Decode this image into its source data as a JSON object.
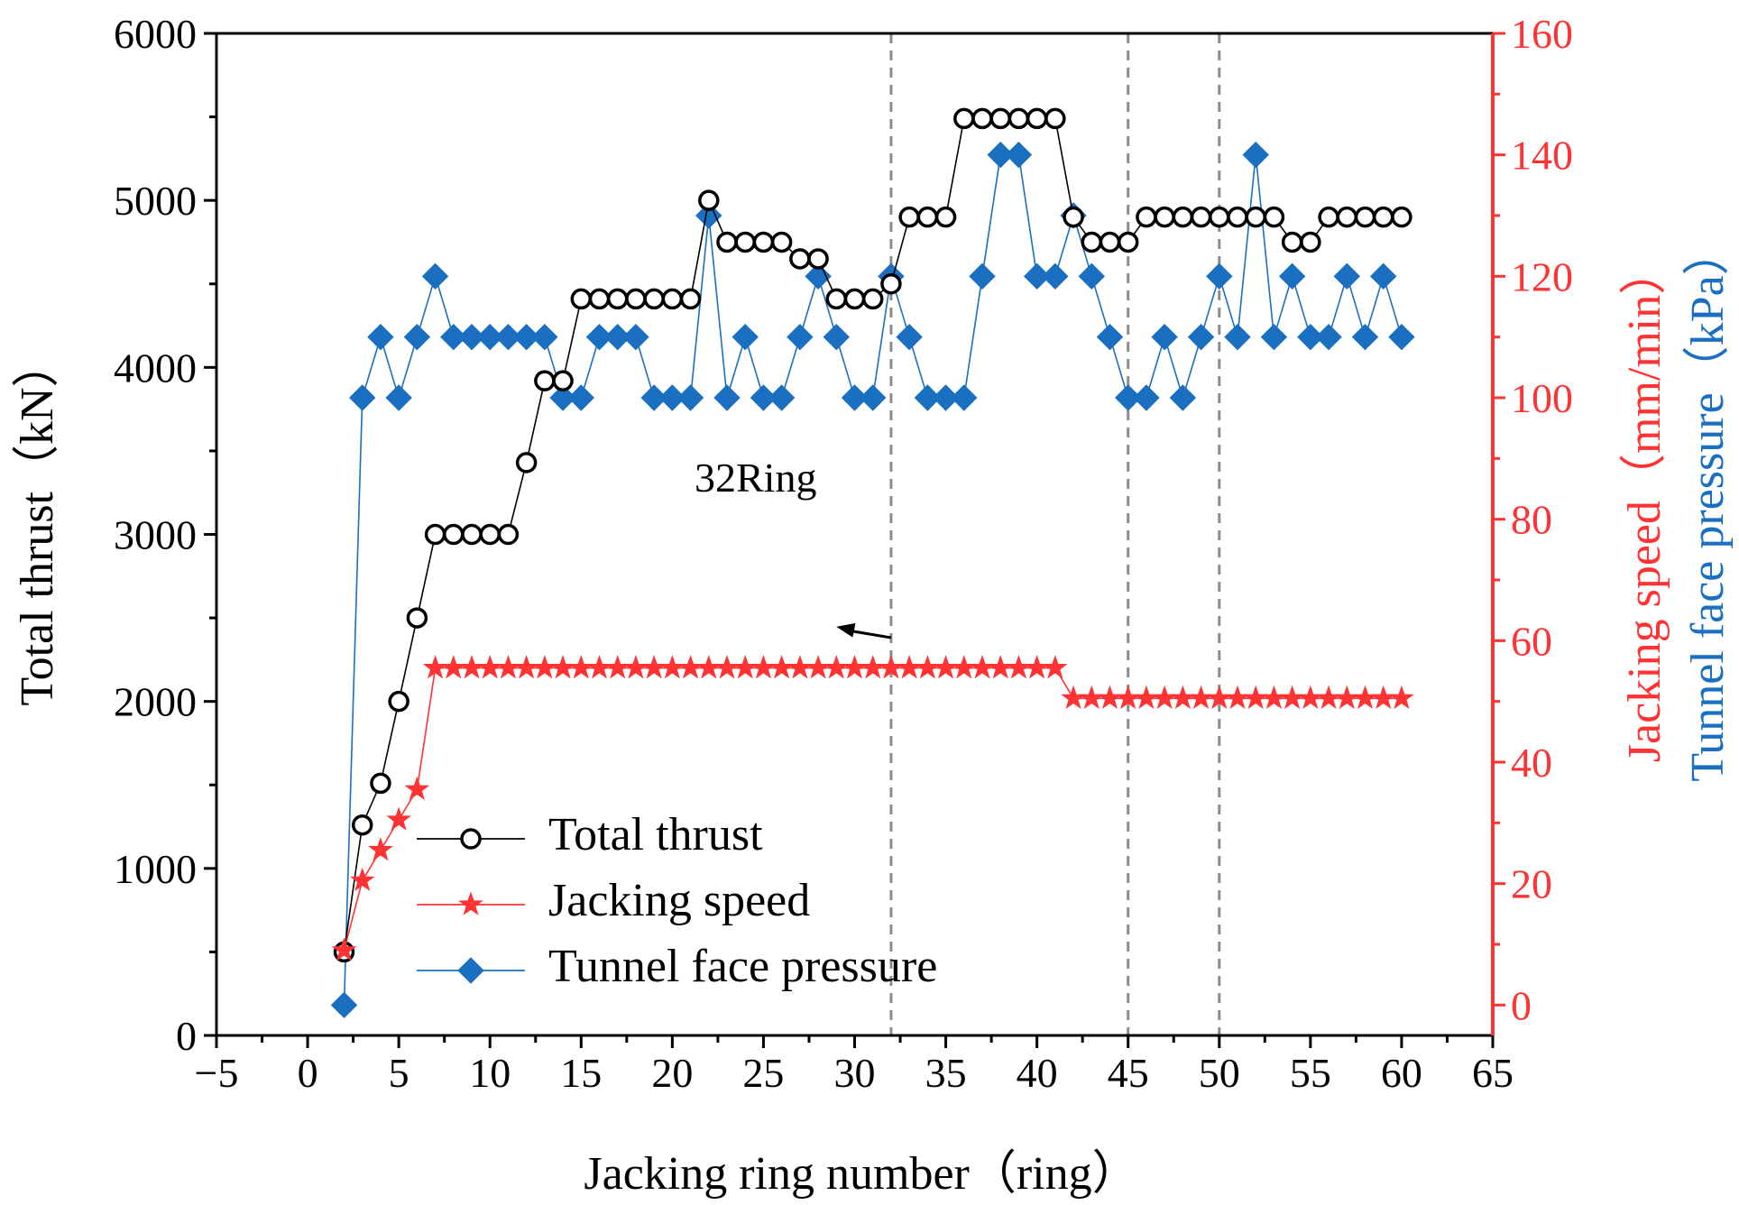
{
  "chart_data": {
    "type": "line",
    "title": "",
    "xlabel": "Jacking ring number（ring）",
    "ylabel_left": "Total thrust（kN）",
    "ylabel_right_1": "Jacking speed（mm/min）",
    "ylabel_right_2": "Tunnel face pressure（kPa）",
    "xlim": [
      -5,
      65
    ],
    "xticks": [
      "−5",
      "0",
      "5",
      "10",
      "15",
      "20",
      "25",
      "30",
      "35",
      "40",
      "45",
      "50",
      "55",
      "60",
      "65"
    ],
    "ylim_left": [
      0,
      6000
    ],
    "yticks_left": [
      "0",
      "1000",
      "2000",
      "3000",
      "4000",
      "5000",
      "6000"
    ],
    "ylim_right": [
      -5,
      160
    ],
    "yticks_right": [
      "0",
      "20",
      "40",
      "60",
      "80",
      "100",
      "120",
      "140",
      "160"
    ],
    "vlines": [
      32,
      45,
      50
    ],
    "annotation": {
      "text": "32Ring",
      "arrow_from": [
        32,
        60.5
      ],
      "arrow_to": [
        29,
        62.3
      ]
    },
    "legend_position": "bottom-left",
    "x": [
      2,
      3,
      4,
      5,
      6,
      7,
      8,
      9,
      10,
      11,
      12,
      13,
      14,
      15,
      16,
      17,
      18,
      19,
      20,
      21,
      22,
      23,
      24,
      25,
      26,
      27,
      28,
      29,
      30,
      31,
      32,
      33,
      34,
      35,
      36,
      37,
      38,
      39,
      40,
      41,
      42,
      43,
      44,
      45,
      46,
      47,
      48,
      49,
      50,
      51,
      52,
      53,
      54,
      55,
      56,
      57,
      58,
      59,
      60
    ],
    "series": [
      {
        "name": "Total thrust",
        "axis": "left",
        "marker": "circle",
        "color": "#000000",
        "values": [
          500,
          1260,
          1510,
          2000,
          2500,
          3000,
          3000,
          3000,
          3000,
          3000,
          3430,
          3920,
          3920,
          4410,
          4410,
          4410,
          4410,
          4410,
          4410,
          4410,
          5000,
          4750,
          4750,
          4750,
          4750,
          4650,
          4650,
          4410,
          4410,
          4410,
          4500,
          4900,
          4900,
          4900,
          5490,
          5490,
          5490,
          5490,
          5490,
          5490,
          4900,
          4750,
          4750,
          4750,
          4900,
          4900,
          4900,
          4900,
          4900,
          4900,
          4900,
          4900,
          4750,
          4750,
          4900,
          4900,
          4900,
          4900,
          4900
        ]
      },
      {
        "name": "Jacking speed",
        "axis": "right",
        "marker": "star",
        "color": "#ff3333",
        "values": [
          9,
          20.5,
          25.5,
          30.5,
          35.5,
          55.5,
          55.5,
          55.5,
          55.5,
          55.5,
          55.5,
          55.5,
          55.5,
          55.5,
          55.5,
          55.5,
          55.5,
          55.5,
          55.5,
          55.5,
          55.5,
          55.5,
          55.5,
          55.5,
          55.5,
          55.5,
          55.5,
          55.5,
          55.5,
          55.5,
          55.5,
          55.5,
          55.5,
          55.5,
          55.5,
          55.5,
          55.5,
          55.5,
          55.5,
          55.5,
          50.5,
          50.5,
          50.5,
          50.5,
          50.5,
          50.5,
          50.5,
          50.5,
          50.5,
          50.5,
          50.5,
          50.5,
          50.5,
          50.5,
          50.5,
          50.5,
          50.5,
          50.5,
          50.5
        ]
      },
      {
        "name": "Tunnel face pressure",
        "axis": "right",
        "marker": "diamond",
        "color": "#1a6fc0",
        "values": [
          0,
          100,
          110,
          100,
          110,
          120,
          110,
          110,
          110,
          110,
          110,
          110,
          100,
          100,
          110,
          110,
          110,
          100,
          100,
          100,
          130,
          100,
          110,
          100,
          100,
          110,
          120,
          110,
          100,
          100,
          120,
          110,
          100,
          100,
          100,
          120,
          140,
          140,
          120,
          120,
          130,
          120,
          110,
          100,
          100,
          110,
          100,
          110,
          120,
          110,
          140,
          110,
          120,
          110,
          110,
          120,
          110,
          120,
          110
        ]
      }
    ]
  }
}
